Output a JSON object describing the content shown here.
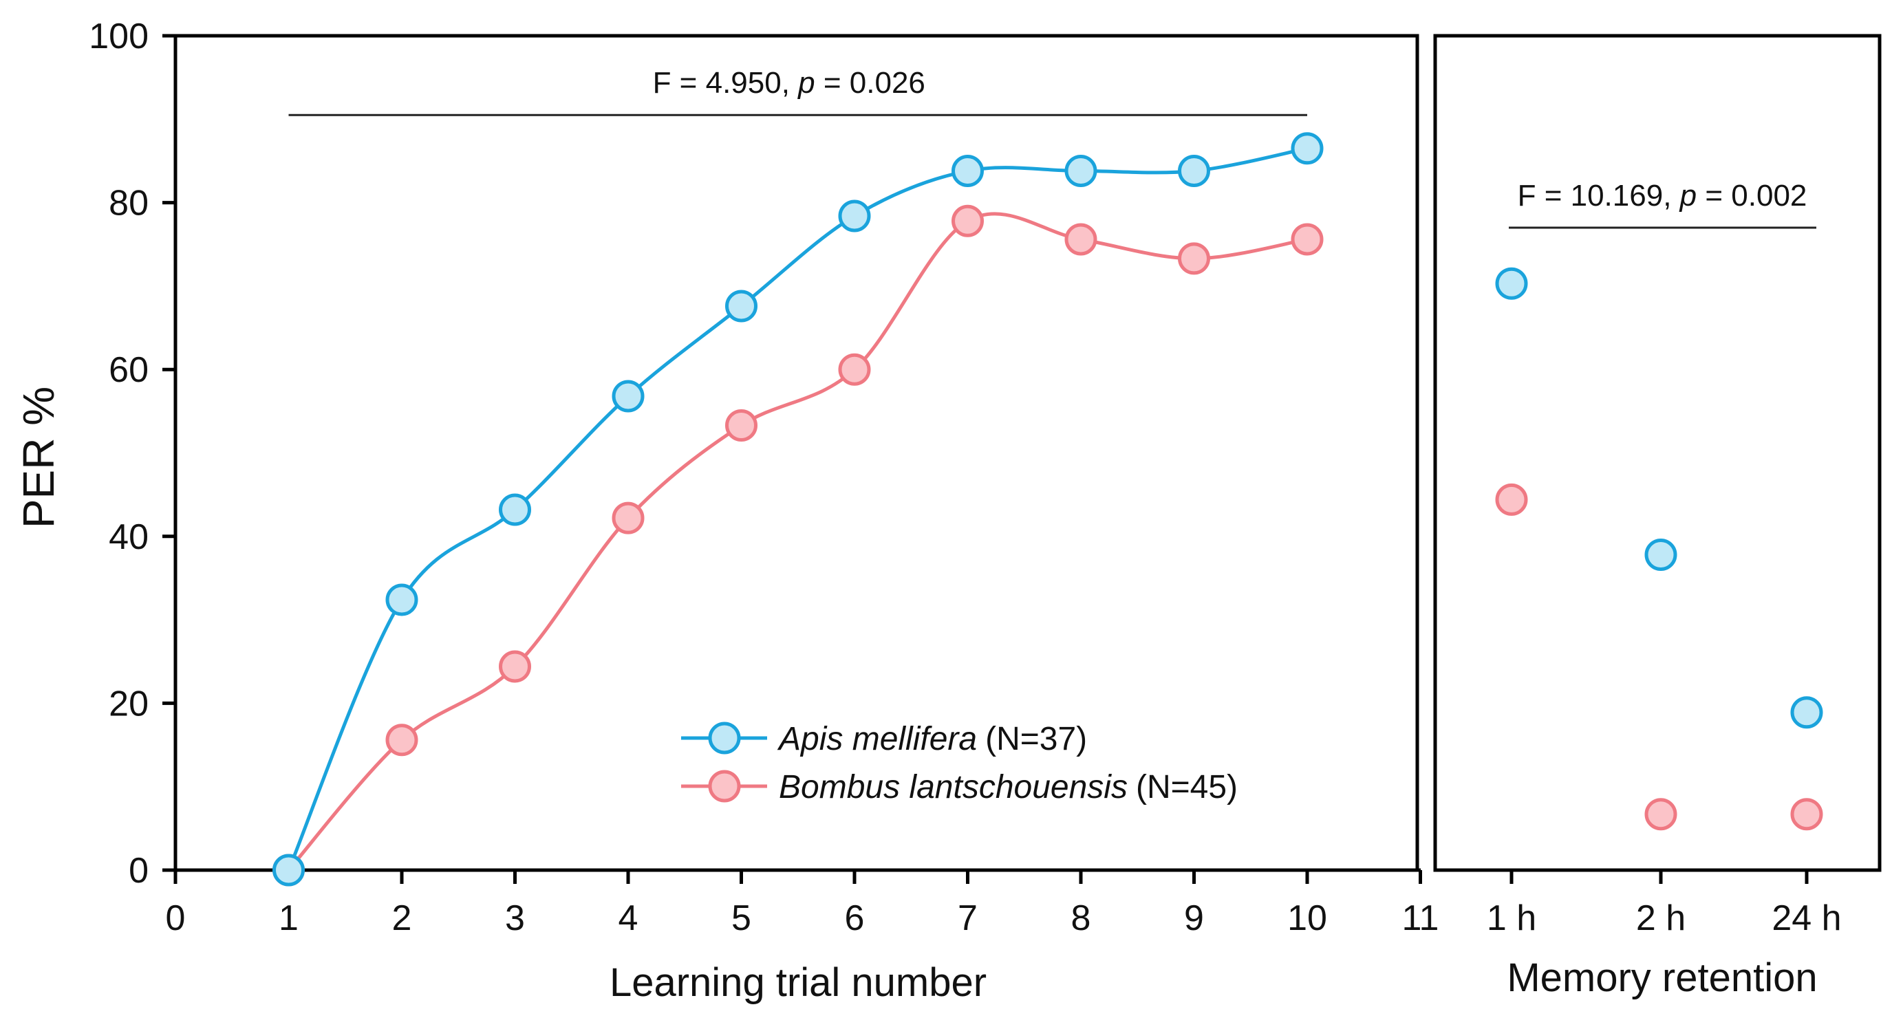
{
  "colors": {
    "apis_line": "#1aa3dc",
    "apis_fill": "#bfe8f7",
    "bombus_line": "#ef7983",
    "bombus_fill": "#fbc3c8",
    "axis": "#000000"
  },
  "chart_data": [
    {
      "type": "line",
      "title": "",
      "xlabel": "Learning trial number",
      "ylabel": "PER %",
      "xlim": [
        0,
        11
      ],
      "ylim": [
        0,
        100
      ],
      "xticks": [
        "0",
        "1",
        "2",
        "3",
        "4",
        "5",
        "6",
        "7",
        "8",
        "9",
        "10",
        "11"
      ],
      "yticks": [
        "0",
        "20",
        "40",
        "60",
        "80",
        "100"
      ],
      "x": [
        1,
        2,
        3,
        4,
        5,
        6,
        7,
        8,
        9,
        10
      ],
      "series": [
        {
          "name": "Apis mellifera",
          "n_label": "(N=37)",
          "values": [
            0,
            32.4,
            43.2,
            56.8,
            67.6,
            78.4,
            83.8,
            83.8,
            83.8,
            86.5
          ]
        },
        {
          "name": "Bombus lantschouensis",
          "n_label": "(N=45)",
          "values": [
            0,
            15.6,
            24.4,
            42.2,
            53.3,
            60.0,
            77.8,
            75.6,
            73.3,
            75.6
          ]
        }
      ],
      "annotation": {
        "prefix": "F = 4.950, ",
        "p_symbol": "p",
        "suffix": " = 0.026",
        "x_range": [
          1,
          10
        ],
        "y": 90.5
      },
      "legend_position": "lower-right"
    },
    {
      "type": "scatter",
      "xlabel": "Memory retention",
      "categories": [
        "1 h",
        "2 h",
        "24 h"
      ],
      "ylim": [
        0,
        100
      ],
      "series": [
        {
          "name": "Apis mellifera",
          "values": [
            70.3,
            37.8,
            18.9
          ]
        },
        {
          "name": "Bombus lantschouensis",
          "values": [
            44.4,
            6.7,
            6.7
          ]
        }
      ],
      "annotation": {
        "prefix": "F = 10.169, ",
        "p_symbol": "p",
        "suffix": " = 0.002",
        "y": 77.0
      }
    }
  ]
}
